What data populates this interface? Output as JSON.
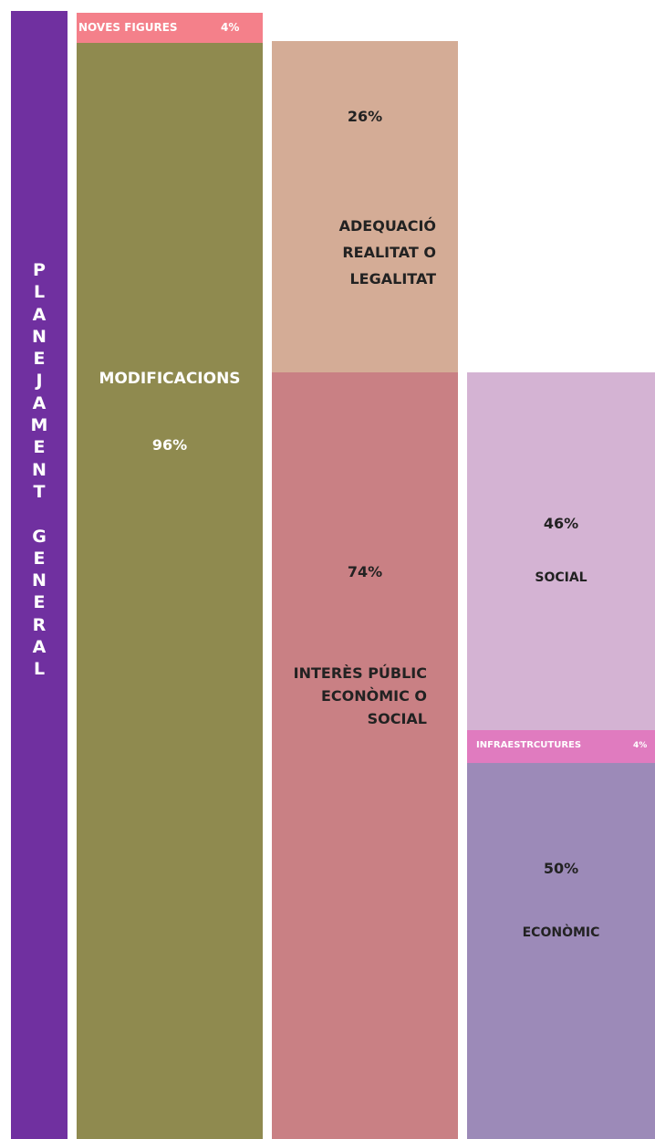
{
  "title": "PLANEJAMENT GENERAL",
  "blocks": [
    {
      "label": "NOVES FIGURES",
      "value": "4%"
    },
    {
      "label": "MODIFICACIONS",
      "value": "96%"
    },
    {
      "label": "ADEQUACIÓ REALITAT O LEGALITAT",
      "value": "26%"
    },
    {
      "label": "INTERÈS PÚBLIC ECONÒMIC O SOCIAL",
      "value": "74%"
    },
    {
      "label": "SOCIAL",
      "value": "46%"
    },
    {
      "label": "INFRAESTRCUTURES",
      "value": "4%"
    },
    {
      "label": "ECONÒMIC",
      "value": "50%"
    }
  ]
}
